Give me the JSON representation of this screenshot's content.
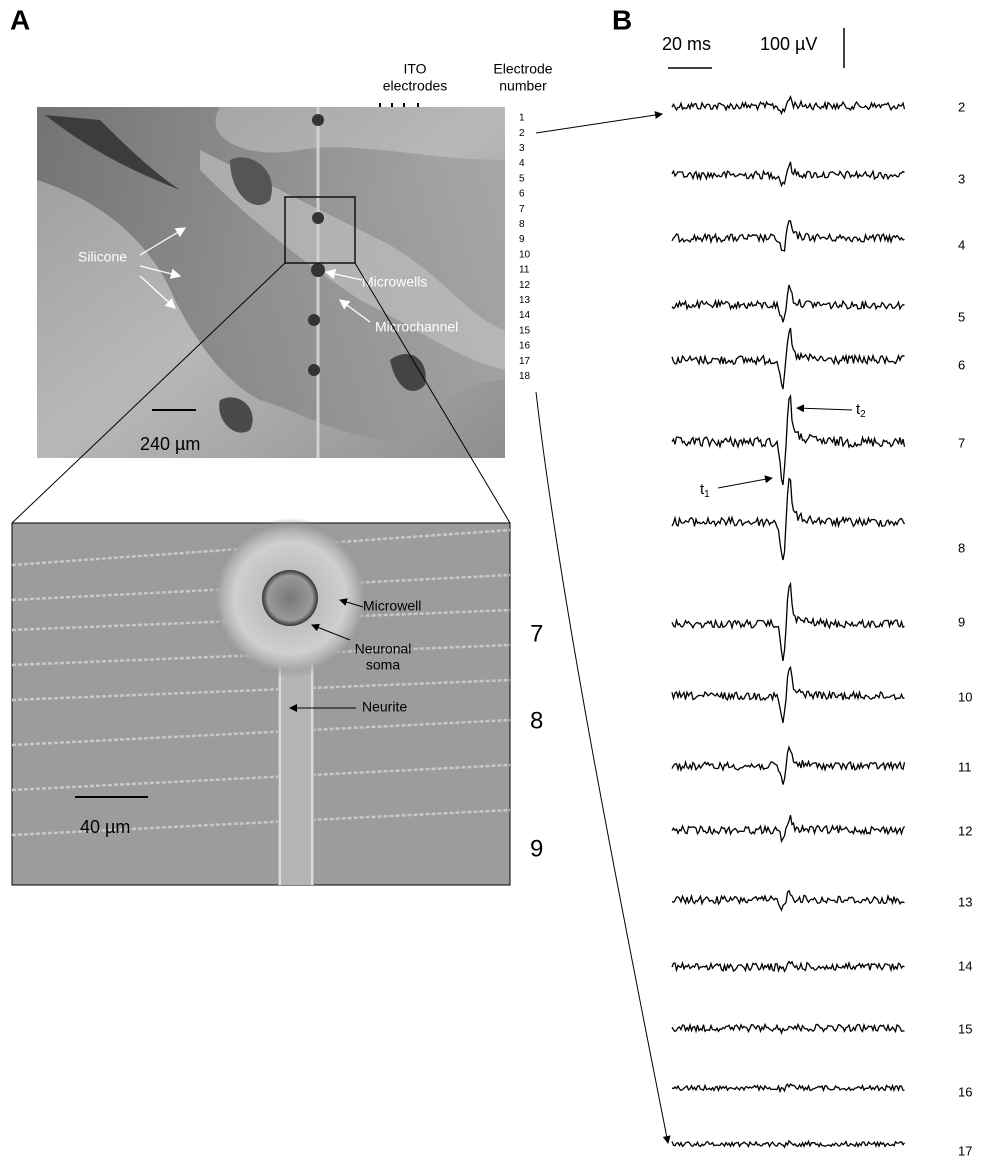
{
  "panel_a": {
    "label": "A",
    "ito_label": [
      "ITO",
      "electrodes"
    ],
    "electrode_header": [
      "Electrode",
      "number"
    ],
    "electrode_numbers": [
      "1",
      "2",
      "3",
      "4",
      "5",
      "6",
      "7",
      "8",
      "9",
      "10",
      "11",
      "12",
      "13",
      "14",
      "15",
      "16",
      "17",
      "18"
    ],
    "silicone": "Silicone",
    "microwells": "Microwells",
    "microchannel": "Microchannel",
    "scale_top": "240 µm",
    "inset": {
      "microwell": "Microwell",
      "soma": [
        "Neuronal",
        "soma"
      ],
      "neurite": "Neurite",
      "scale": "40 µm",
      "rows": [
        "7",
        "8",
        "9"
      ]
    }
  },
  "panel_b": {
    "label": "B",
    "time_scale": "20 ms",
    "volt_scale": "100 µV",
    "t1": "t",
    "t1_sub": "1",
    "t2": "t",
    "t2_sub": "2",
    "trace_labels": [
      "2",
      "3",
      "4",
      "5",
      "6",
      "7",
      "8",
      "9",
      "10",
      "11",
      "12",
      "13",
      "14",
      "15",
      "16",
      "17"
    ]
  }
}
